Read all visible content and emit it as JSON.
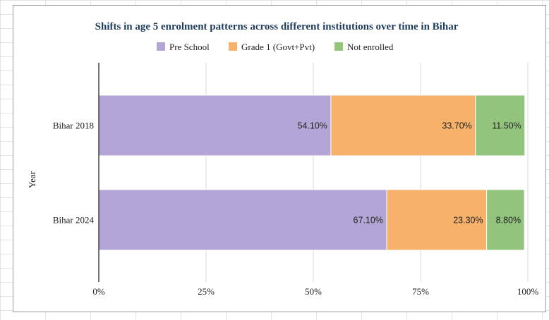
{
  "chart_data": {
    "type": "bar",
    "orientation": "horizontal",
    "stacked": "percent",
    "title": "Shifts in age 5 enrolment patterns across different institutions over time in Bihar",
    "ylabel": "Year",
    "xlabel": "",
    "categories": [
      "Bihar 2018",
      "Bihar 2024"
    ],
    "series": [
      {
        "name": "Pre School",
        "values": [
          54.1,
          67.1
        ],
        "labels": [
          "54.10%",
          "67.10%"
        ],
        "color": "#b3a6d6"
      },
      {
        "name": "Grade 1 (Govt+Pvt)",
        "values": [
          33.7,
          23.3
        ],
        "labels": [
          "33.70%",
          "23.30%"
        ],
        "color": "#f6b26b"
      },
      {
        "name": "Not enrolled",
        "values": [
          11.5,
          8.8
        ],
        "labels": [
          "11.50%",
          "8.80%"
        ],
        "color": "#93c47d"
      }
    ],
    "xlim": [
      0,
      100
    ],
    "xticks": [
      "0%",
      "25%",
      "50%",
      "75%",
      "100%"
    ],
    "grid": true,
    "legend_position": "top"
  }
}
